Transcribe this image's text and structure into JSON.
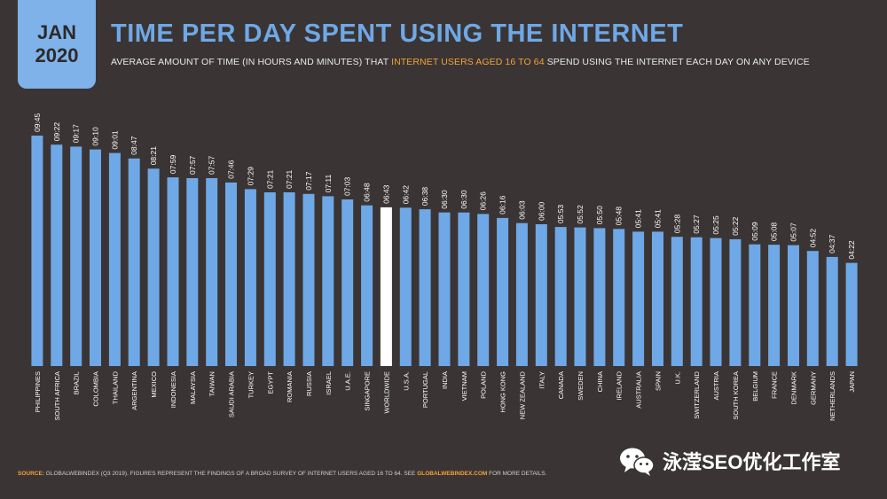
{
  "header": {
    "badge_month": "JAN",
    "badge_year": "2020",
    "title": "TIME PER DAY SPENT USING THE INTERNET",
    "subtitle_pre": "AVERAGE AMOUNT OF TIME (IN HOURS AND MINUTES) THAT ",
    "subtitle_highlight": "INTERNET USERS AGED 16 TO 64",
    "subtitle_post": " SPEND USING THE INTERNET EACH DAY ON ANY DEVICE"
  },
  "footer": {
    "source_label": "SOURCE:",
    "source_text": " GLOBALWEBINDEX (Q3 2019). FIGURES REPRESENT THE FINDINGS OF A BROAD SURVEY OF INTERNET USERS AGED 16 TO 64. SEE ",
    "source_link": "GLOBALWEBINDEX.COM",
    "source_end": " FOR MORE DETAILS.",
    "watermark_text": "泳滢SEO优化工作室",
    "watermark_icon": "wechat-icon"
  },
  "colors": {
    "background": "#3a3534",
    "bar": "#6fa8e6",
    "highlight_bar": "#ffffff",
    "accent": "#f2a13b"
  },
  "chart_data": {
    "type": "bar",
    "unit": "hours:minutes",
    "categories": [
      "PHILIPPINES",
      "SOUTH AFRICA",
      "BRAZIL",
      "COLOMBIA",
      "THAILAND",
      "ARGENTINA",
      "MEXICO",
      "INDONESIA",
      "MALAYSIA",
      "TAIWAN",
      "SAUDI ARABIA",
      "TURKEY",
      "EGYPT",
      "ROMANIA",
      "RUSSIA",
      "ISRAEL",
      "U.A.E.",
      "SINGAPORE",
      "WORLDWIDE",
      "U.S.A.",
      "PORTUGAL",
      "INDIA",
      "VIETNAM",
      "POLAND",
      "HONG KONG",
      "NEW ZEALAND",
      "ITALY",
      "CANADA",
      "SWEDEN",
      "CHINA",
      "IRELAND",
      "AUSTRALIA",
      "SPAIN",
      "U.K.",
      "SWITZERLAND",
      "AUSTRIA",
      "SOUTH KOREA",
      "BELGIUM",
      "FRANCE",
      "DENMARK",
      "GERMANY",
      "NETHERLANDS",
      "JAPAN"
    ],
    "labels": [
      "09:45",
      "09:22",
      "09:17",
      "09:10",
      "09:01",
      "08:47",
      "08:21",
      "07:59",
      "07:57",
      "07:57",
      "07:46",
      "07:29",
      "07:21",
      "07:21",
      "07:17",
      "07:11",
      "07:03",
      "06:48",
      "06:43",
      "06:42",
      "06:38",
      "06:30",
      "06:30",
      "06:26",
      "06:16",
      "06:03",
      "06:00",
      "05:53",
      "05:52",
      "05:50",
      "05:48",
      "05:41",
      "05:41",
      "05:28",
      "05:27",
      "05:25",
      "05:22",
      "05:09",
      "05:08",
      "05:07",
      "04:52",
      "04:37",
      "04:22"
    ],
    "values_minutes": [
      585,
      562,
      557,
      550,
      541,
      527,
      501,
      479,
      477,
      477,
      466,
      449,
      441,
      441,
      437,
      431,
      423,
      408,
      403,
      402,
      398,
      390,
      390,
      386,
      376,
      363,
      360,
      353,
      352,
      350,
      348,
      341,
      341,
      328,
      327,
      325,
      322,
      309,
      308,
      307,
      292,
      277,
      262
    ],
    "highlight_category": "WORLDWIDE",
    "ylim_minutes": [
      0,
      600
    ],
    "grid": false,
    "legend": "none"
  }
}
